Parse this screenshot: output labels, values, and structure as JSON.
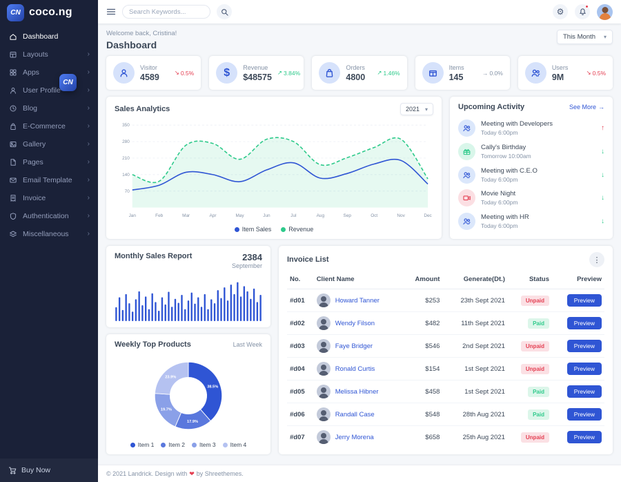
{
  "brand": {
    "name": "coco.ng",
    "logo_mark": "CN"
  },
  "topbar": {
    "search_placeholder": "Search Keywords..."
  },
  "sidebar": {
    "items": [
      {
        "label": "Dashboard",
        "icon": "home-icon",
        "active": true
      },
      {
        "label": "Layouts",
        "icon": "layout-icon"
      },
      {
        "label": "Apps",
        "icon": "grid-icon"
      },
      {
        "label": "User Profile",
        "icon": "user-icon"
      },
      {
        "label": "Blog",
        "icon": "clock-icon"
      },
      {
        "label": "E-Commerce",
        "icon": "shopping-bag-icon"
      },
      {
        "label": "Gallery",
        "icon": "image-icon"
      },
      {
        "label": "Pages",
        "icon": "file-icon"
      },
      {
        "label": "Email Template",
        "icon": "mail-icon"
      },
      {
        "label": "Invoice",
        "icon": "receipt-icon"
      },
      {
        "label": "Authentication",
        "icon": "shield-icon"
      },
      {
        "label": "Miscellaneous",
        "icon": "layers-icon"
      }
    ],
    "buy_now_label": "Buy Now"
  },
  "header": {
    "welcome": "Welcome back, Cristina!",
    "title": "Dashboard",
    "period": "This Month"
  },
  "stats": [
    {
      "label": "Visitor",
      "value": "4589",
      "delta": "0.5%",
      "direction": "down",
      "arrow": "↘"
    },
    {
      "label": "Revenue",
      "value": "$48575",
      "delta": "3.84%",
      "direction": "up",
      "arrow": "↗"
    },
    {
      "label": "Orders",
      "value": "4800",
      "delta": "1.46%",
      "direction": "up",
      "arrow": "↗"
    },
    {
      "label": "Items",
      "value": "145",
      "delta": "0.0%",
      "direction": "flat",
      "arrow": "→"
    },
    {
      "label": "Users",
      "value": "9M",
      "delta": "0.5%",
      "direction": "down",
      "arrow": "↘"
    }
  ],
  "sales_card": {
    "title": "Sales Analytics",
    "year": "2021"
  },
  "activity": {
    "title": "Upcoming Activity",
    "see_more": "See More",
    "see_more_arrow": "→",
    "items": [
      {
        "title": "Meeting with Developers",
        "time": "Today 6:00pm",
        "trend": "up",
        "arrow": "↑",
        "icon": "team-icon",
        "tone": "blue"
      },
      {
        "title": "Cally's Birthday",
        "time": "Tomorrow 10:00am",
        "trend": "down",
        "arrow": "↓",
        "icon": "gift-icon",
        "tone": "green"
      },
      {
        "title": "Meeting with C.E.O",
        "time": "Today 6:00pm",
        "trend": "down",
        "arrow": "↓",
        "icon": "team-icon",
        "tone": "blue"
      },
      {
        "title": "Movie Night",
        "time": "Today 6:00pm",
        "trend": "down",
        "arrow": "↓",
        "icon": "movie-icon",
        "tone": "red"
      },
      {
        "title": "Meeting with HR",
        "time": "Today 6:00pm",
        "trend": "down",
        "arrow": "↓",
        "icon": "team-icon",
        "tone": "blue"
      }
    ]
  },
  "monthly": {
    "title": "Monthly Sales Report",
    "value": "2384",
    "period": "September"
  },
  "weekly": {
    "title": "Weekly Top Products",
    "subtitle": "Last Week"
  },
  "invoices": {
    "title": "Invoice List",
    "columns": [
      "No.",
      "Client Name",
      "Amount",
      "Generate(Dt.)",
      "Status",
      "Preview"
    ],
    "preview_label": "Preview",
    "rows": [
      {
        "no": "#d01",
        "client": "Howard Tanner",
        "amount": "$253",
        "date": "23th Sept 2021",
        "status": "Unpaid",
        "status_type": "unpaid"
      },
      {
        "no": "#d02",
        "client": "Wendy Filson",
        "amount": "$482",
        "date": "11th Sept 2021",
        "status": "Paid",
        "status_type": "paid"
      },
      {
        "no": "#d03",
        "client": "Faye Bridger",
        "amount": "$546",
        "date": "2nd Sept 2021",
        "status": "Unpaid",
        "status_type": "unpaid"
      },
      {
        "no": "#d04",
        "client": "Ronald Curtis",
        "amount": "$154",
        "date": "1st Sept 2021",
        "status": "Unpaid",
        "status_type": "unpaid"
      },
      {
        "no": "#d05",
        "client": "Melissa Hibner",
        "amount": "$458",
        "date": "1st Sept 2021",
        "status": "Paid",
        "status_type": "paid"
      },
      {
        "no": "#d06",
        "client": "Randall Case",
        "amount": "$548",
        "date": "28th Aug 2021",
        "status": "Paid",
        "status_type": "paid"
      },
      {
        "no": "#d07",
        "client": "Jerry Morena",
        "amount": "$658",
        "date": "25th Aug 2021",
        "status": "Unpaid",
        "status_type": "unpaid"
      }
    ]
  },
  "footer": {
    "text": "© 2021 Landrick. Design with",
    "heart": "❤",
    "suffix": "by Shreethemes."
  },
  "colors": {
    "primary": "#2f55d4",
    "success": "#2eca8b",
    "danger": "#e43f52",
    "sidebar": "#1a2138"
  },
  "chart_data": [
    {
      "id": "sales_analytics",
      "type": "line",
      "title": "Sales Analytics",
      "x": [
        "Jan",
        "Feb",
        "Mar",
        "Apr",
        "May",
        "Jun",
        "Jul",
        "Aug",
        "Sep",
        "Oct",
        "Nov",
        "Dec"
      ],
      "ylim": [
        0,
        350
      ],
      "yticks": [
        70,
        140,
        210,
        280,
        350
      ],
      "grid": true,
      "legend_position": "bottom",
      "series": [
        {
          "name": "Item Sales",
          "color": "#2f55d4",
          "dashed": false,
          "area": false,
          "values": [
            75,
            95,
            150,
            140,
            110,
            160,
            190,
            125,
            145,
            185,
            200,
            100
          ]
        },
        {
          "name": "Revenue",
          "color": "#2eca8b",
          "dashed": true,
          "area": true,
          "values": [
            140,
            112,
            265,
            272,
            205,
            290,
            280,
            182,
            212,
            255,
            290,
            122
          ]
        }
      ]
    },
    {
      "id": "monthly_sales_report",
      "type": "bar",
      "title": "Monthly Sales Report",
      "total_label": "2384",
      "period": "September",
      "color": "#2f55d4",
      "values": [
        35,
        60,
        28,
        68,
        45,
        24,
        55,
        75,
        40,
        62,
        30,
        70,
        48,
        26,
        60,
        42,
        74,
        36,
        56,
        46,
        66,
        30,
        52,
        72,
        44,
        60,
        36,
        68,
        30,
        55,
        45,
        78,
        58,
        85,
        52,
        92,
        68,
        98,
        62,
        88,
        75,
        56,
        82,
        48,
        66
      ]
    },
    {
      "id": "weekly_top_products",
      "type": "pie",
      "title": "Weekly Top Products",
      "subtitle": "Last Week",
      "labels": [
        "Item 1",
        "Item 2",
        "Item 3",
        "Item 4"
      ],
      "values": [
        38.5,
        17.9,
        19.7,
        23.9
      ],
      "colors": [
        "#2f55d4",
        "#5a78dd",
        "#8aa0e8",
        "#b5c2f1"
      ]
    }
  ]
}
